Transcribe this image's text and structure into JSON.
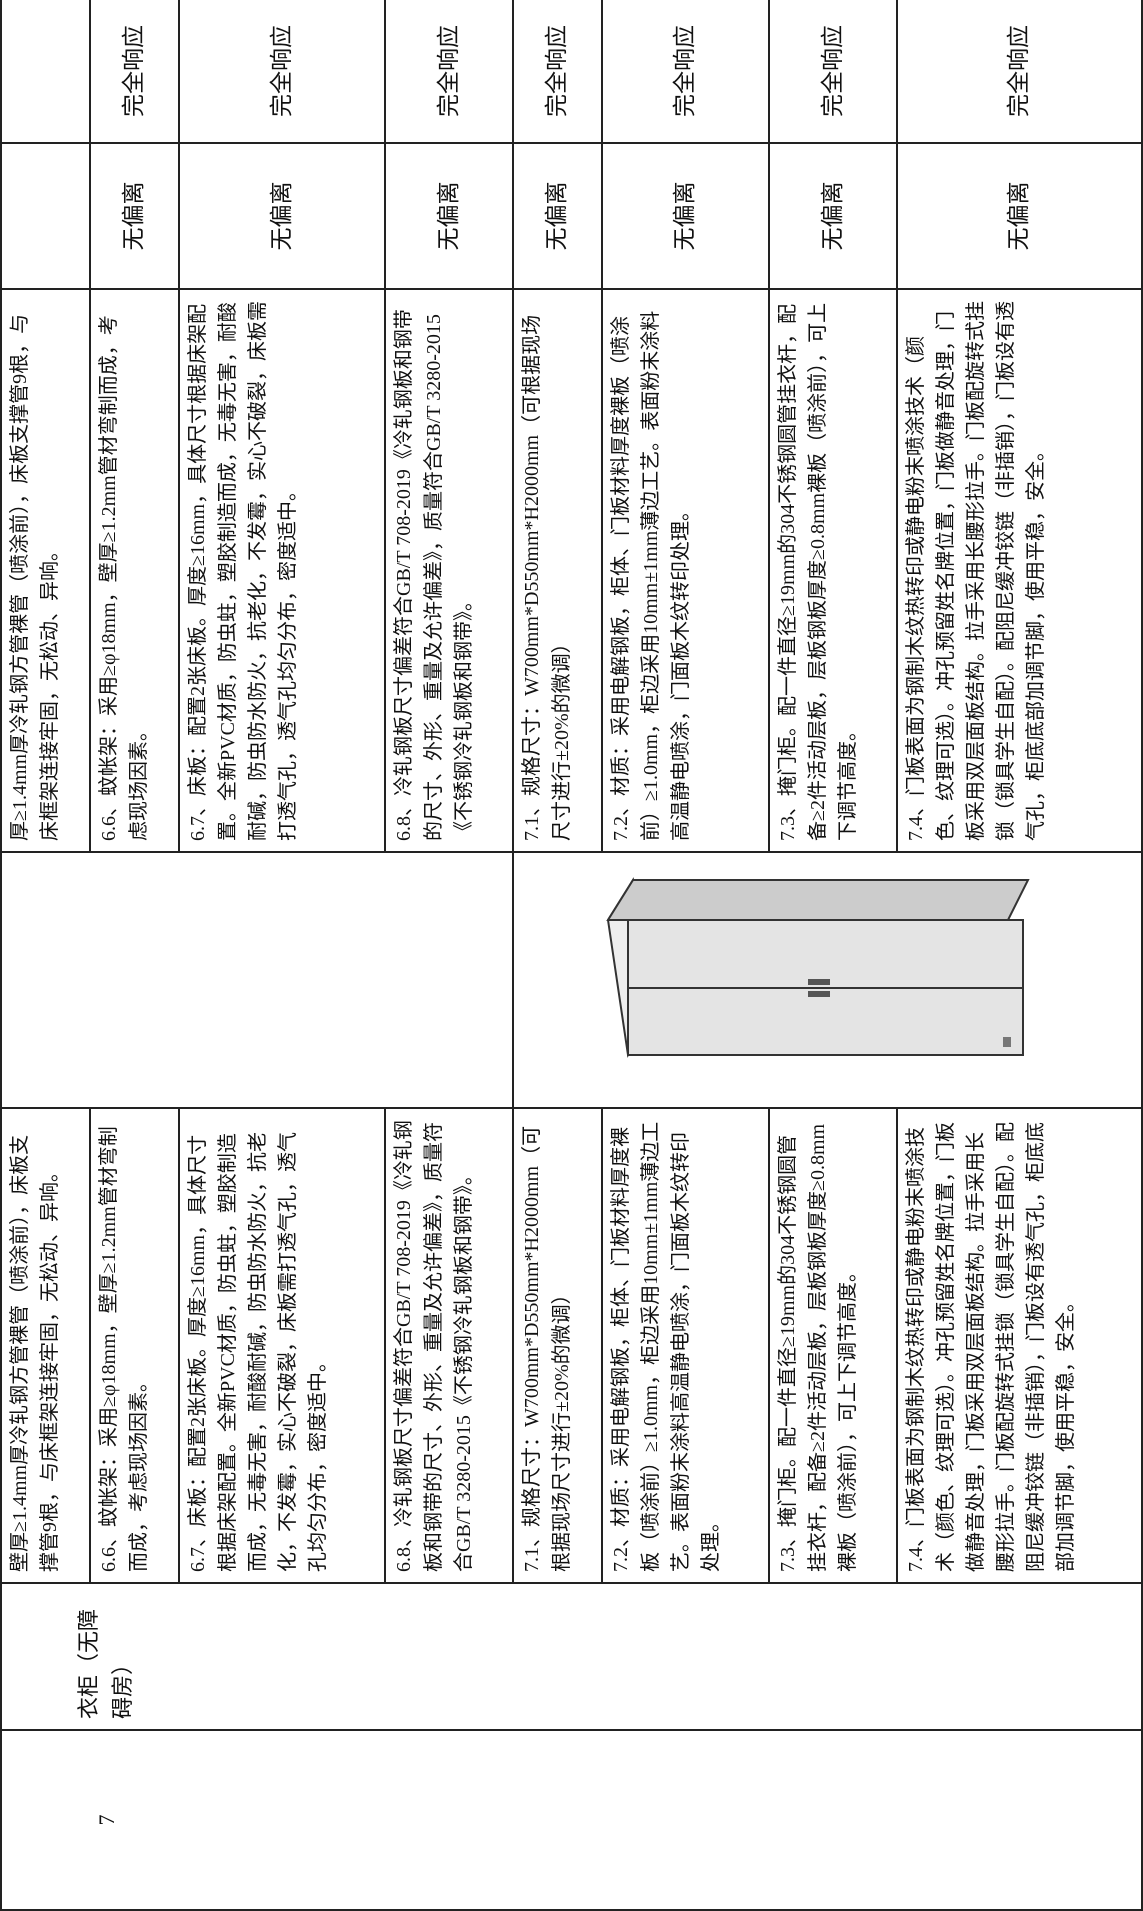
{
  "table": {
    "item": {
      "number": "7",
      "name": "衣柜（无障碍房）"
    },
    "rows": [
      {
        "requirement": "壁厚≥1.4mm厚冷轧钢方管裸管（喷涂前），床板支撑管9根，与床框架连接牢固，无松动、异响。",
        "response": "厚≥1.4mm厚冷轧钢方管裸管（喷涂前），床板支撑管9根，与床框架连接牢固，无松动、异响。"
      },
      {
        "requirement": "6.6、蚊帐架：采用≥φ18mm，壁厚≥1.2mm管材弯制而成，考虑现场因素。",
        "response": "6.6、蚊帐架：采用≥φ18mm，壁厚≥1.2mm管材弯制而成，考虑现场因素。",
        "deviation": "无偏离",
        "compliance": "完全响应"
      },
      {
        "requirement": "6.7、床板：配置2张床板。厚度≥16mm，具体尺寸根据床架配置。全新PVC材质，防虫蛀，塑胶制造而成，无毒无害，耐酸耐碱，防虫防水防火，抗老化，不发霉，实心不破裂，床板需打透气孔，透气孔均匀分布，密度适中。",
        "response": "6.7、床板：配置2张床板。厚度≥16mm，具体尺寸根据床架配置。全新PVC材质，防虫蛀，塑胶制造而成，无毒无害，耐酸耐碱，防虫防水防火，抗老化，不发霉，实心不破裂，床板需打透气孔，透气孔均匀分布，密度适中。",
        "deviation": "无偏离",
        "compliance": "完全响应"
      },
      {
        "requirement": "6.8、冷轧钢板尺寸偏差符合GB/T 708-2019《冷轧钢板和钢带的尺寸、外形、重量及允许偏差》，质量符合GB/T 3280-2015《不锈钢冷轧钢板和钢带》。",
        "response": "6.8、冷轧钢板尺寸偏差符合GB/T 708-2019《冷轧钢板和钢带的尺寸、外形、重量及允许偏差》，质量符合GB/T 3280-2015《不锈钢冷轧钢板和钢带》。",
        "deviation": "无偏离",
        "compliance": "完全响应"
      },
      {
        "requirement": "7.1、规格尺寸：W700mm*D550mm*H2000mm（可根据现场尺寸进行±20%的微调）",
        "response": "7.1、规格尺寸：W700mm*D550mm*H2000mm（可根据现场尺寸进行±20%的微调）",
        "deviation": "无偏离",
        "compliance": "完全响应"
      },
      {
        "requirement": "7.2、材质：采用电解钢板，柜体、门板材料厚度裸板（喷涂前）≥1.0mm，柜边采用10mm±1mm薄边工艺。表面粉末涂料高温静电喷涂，门面板木纹转印处理。",
        "response": "7.2、材质：采用电解钢板，柜体、门板材料厚度裸板（喷涂前）≥1.0mm，柜边采用10mm±1mm薄边工艺。表面粉末涂料高温静电喷涂，门面板木纹转印处理。",
        "deviation": "无偏离",
        "compliance": "完全响应"
      },
      {
        "requirement": "7.3、掩门柜。配一件直径≥19mm的304不锈钢圆管挂衣杆，配备≥2件活动层板，层板钢板厚度≥0.8mm裸板（喷涂前），可上下调节高度。",
        "response": "7.3、掩门柜。配一件直径≥19mm的304不锈钢圆管挂衣杆，配备≥2件活动层板，层板钢板厚度≥0.8mm裸板（喷涂前），可上下调节高度。",
        "deviation": "无偏离",
        "compliance": "完全响应"
      },
      {
        "requirement": "7.4、门板表面为钢制木纹热转印或静电粉末喷涂技术（颜色、纹理可选）。冲孔预留姓名牌位置，门板做静音处理，门板采用双层面板结构。拉手采用长腰形拉手。门板配旋转式挂锁（锁具学生自配）。配阻尼缓冲铰链（非插销），门板设有透气孔，柜底底部加调节脚，使用平稳，安全。",
        "response": "7.4、门板表面为钢制木纹热转印或静电粉末喷涂技术（颜色、纹理可选）。冲孔预留姓名牌位置，门板做静音处理，门板采用双层面板结构。拉手采用长腰形拉手。门板配旋转式挂锁（锁具学生自配）。配阻尼缓冲铰链（非插销），门板设有透气孔，柜底底部加调节脚，使用平稳，安全。",
        "deviation": "无偏离",
        "compliance": "完全响应"
      }
    ]
  }
}
